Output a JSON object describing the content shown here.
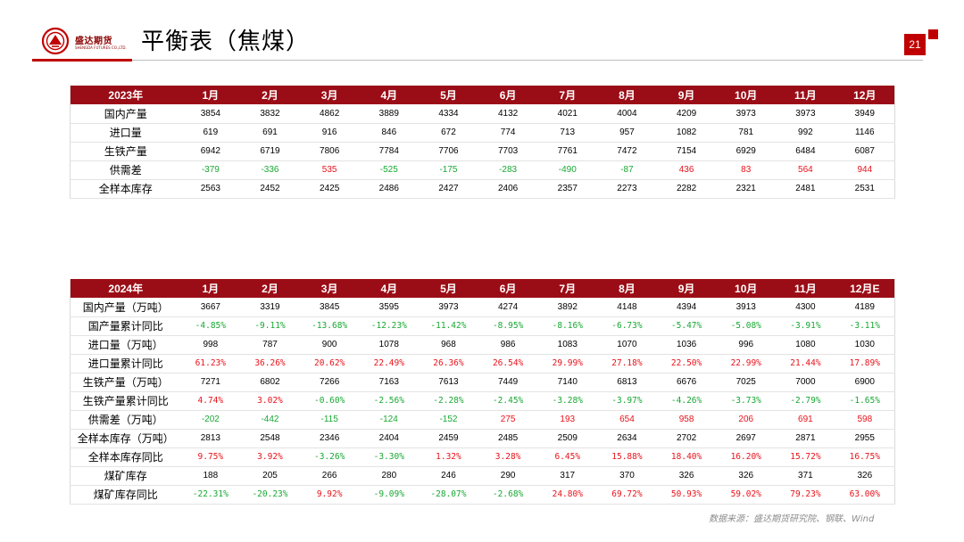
{
  "logo": {
    "cn": "盛达期货",
    "en": "SHENGDA FUTURES CO.,LTD."
  },
  "page_title": "平衡表（焦煤）",
  "page_number": "21",
  "colors": {
    "header_bg": "#9b0d16",
    "accent": "#c00000",
    "positive": "#e8121a",
    "negative": "#18a833"
  },
  "table_2023": {
    "headers": [
      "2023年",
      "1月",
      "2月",
      "3月",
      "4月",
      "5月",
      "6月",
      "7月",
      "8月",
      "9月",
      "10月",
      "11月",
      "12月"
    ],
    "rows": [
      {
        "label": "国内产量",
        "values": [
          "3854",
          "3832",
          "4862",
          "3889",
          "4334",
          "4132",
          "4021",
          "4004",
          "4209",
          "3973",
          "3973",
          "3949"
        ]
      },
      {
        "label": "进口量",
        "values": [
          "619",
          "691",
          "916",
          "846",
          "672",
          "774",
          "713",
          "957",
          "1082",
          "781",
          "992",
          "1146"
        ]
      },
      {
        "label": "生铁产量",
        "values": [
          "6942",
          "6719",
          "7806",
          "7784",
          "7706",
          "7703",
          "7761",
          "7472",
          "7154",
          "6929",
          "6484",
          "6087"
        ]
      },
      {
        "label": "供需差",
        "values": [
          "-379",
          "-336",
          "535",
          "-525",
          "-175",
          "-283",
          "-490",
          "-87",
          "436",
          "83",
          "564",
          "944"
        ]
      },
      {
        "label": "全样本库存",
        "values": [
          "2563",
          "2452",
          "2425",
          "2486",
          "2427",
          "2406",
          "2357",
          "2273",
          "2282",
          "2321",
          "2481",
          "2531"
        ]
      }
    ]
  },
  "table_2024": {
    "headers": [
      "2024年",
      "1月",
      "2月",
      "3月",
      "4月",
      "5月",
      "6月",
      "7月",
      "8月",
      "9月",
      "10月",
      "11月",
      "12月E"
    ],
    "rows": [
      {
        "label": "国内产量（万吨）",
        "values": [
          "3667",
          "3319",
          "3845",
          "3595",
          "3973",
          "4274",
          "3892",
          "4148",
          "4394",
          "3913",
          "4300",
          "4189"
        ]
      },
      {
        "label": "国产量累计同比",
        "values": [
          "-4.85%",
          "-9.11%",
          "-13.68%",
          "-12.23%",
          "-11.42%",
          "-8.95%",
          "-8.16%",
          "-6.73%",
          "-5.47%",
          "-5.08%",
          "-3.91%",
          "-3.11%"
        ]
      },
      {
        "label": "进口量（万吨）",
        "values": [
          "998",
          "787",
          "900",
          "1078",
          "968",
          "986",
          "1083",
          "1070",
          "1036",
          "996",
          "1080",
          "1030"
        ]
      },
      {
        "label": "进口量累计同比",
        "values": [
          "61.23%",
          "36.26%",
          "20.62%",
          "22.49%",
          "26.36%",
          "26.54%",
          "29.99%",
          "27.18%",
          "22.50%",
          "22.99%",
          "21.44%",
          "17.89%"
        ]
      },
      {
        "label": "生铁产量（万吨）",
        "values": [
          "7271",
          "6802",
          "7266",
          "7163",
          "7613",
          "7449",
          "7140",
          "6813",
          "6676",
          "7025",
          "7000",
          "6900"
        ]
      },
      {
        "label": "生铁产量累计同比",
        "values": [
          "4.74%",
          "3.02%",
          "-0.60%",
          "-2.56%",
          "-2.28%",
          "-2.45%",
          "-3.28%",
          "-3.97%",
          "-4.26%",
          "-3.73%",
          "-2.79%",
          "-1.65%"
        ]
      },
      {
        "label": "供需差（万吨）",
        "values": [
          "-202",
          "-442",
          "-115",
          "-124",
          "-152",
          "275",
          "193",
          "654",
          "958",
          "206",
          "691",
          "598"
        ]
      },
      {
        "label": "全样本库存（万吨）",
        "values": [
          "2813",
          "2548",
          "2346",
          "2404",
          "2459",
          "2485",
          "2509",
          "2634",
          "2702",
          "2697",
          "2871",
          "2955"
        ]
      },
      {
        "label": "全样本库存同比",
        "values": [
          "9.75%",
          "3.92%",
          "-3.26%",
          "-3.30%",
          "1.32%",
          "3.28%",
          "6.45%",
          "15.88%",
          "18.40%",
          "16.20%",
          "15.72%",
          "16.75%"
        ]
      },
      {
        "label": "煤矿库存",
        "values": [
          "188",
          "205",
          "266",
          "280",
          "246",
          "290",
          "317",
          "370",
          "326",
          "326",
          "371",
          "326"
        ]
      },
      {
        "label": "煤矿库存同比",
        "values": [
          "-22.31%",
          "-20.23%",
          "9.92%",
          "-9.09%",
          "-28.07%",
          "-2.68%",
          "24.80%",
          "69.72%",
          "50.93%",
          "59.02%",
          "79.23%",
          "63.00%"
        ]
      }
    ]
  },
  "colored_rows": {
    "table_2023": [
      3
    ],
    "table_2024": [
      1,
      3,
      5,
      6,
      8,
      10
    ]
  },
  "source_note": "数据来源：盛达期货研究院、钢联、Wind"
}
